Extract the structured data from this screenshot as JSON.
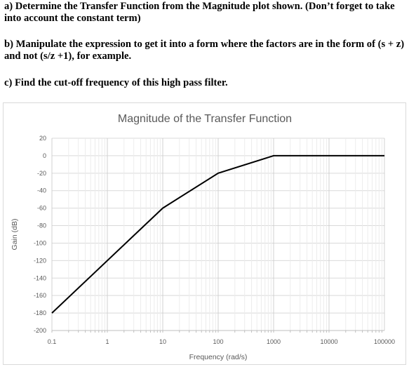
{
  "questions": {
    "a": "a) Determine the Transfer Function from the Magnitude plot shown. (Don’t forget to take into account the constant term)",
    "b": "b) Manipulate the expression to get it into a form where the factors are in the form of (s + z) and not (s/z +1), for example.",
    "c": "c) Find the cut-off frequency of this high pass filter."
  },
  "chart_data": {
    "type": "line",
    "title": "Magnitude of the Transfer Function",
    "xlabel": "Frequency (rad/s)",
    "ylabel": "Gain (dB)",
    "xscale": "log",
    "xlim": [
      0.1,
      100000
    ],
    "ylim": [
      -200,
      20
    ],
    "x_ticks": [
      "0.1",
      "1",
      "10",
      "100",
      "1000",
      "10000",
      "100000"
    ],
    "y_ticks": [
      "20",
      "0",
      "-20",
      "-40",
      "-60",
      "-80",
      "-100",
      "-120",
      "-140",
      "-160",
      "-180",
      "-200"
    ],
    "grid": true,
    "legend": "none",
    "line_color": "#000000",
    "series": [
      {
        "x": [
          0.1,
          10,
          100,
          1000,
          100000
        ],
        "y": [
          -180,
          -60,
          -20,
          0,
          0
        ]
      }
    ]
  }
}
